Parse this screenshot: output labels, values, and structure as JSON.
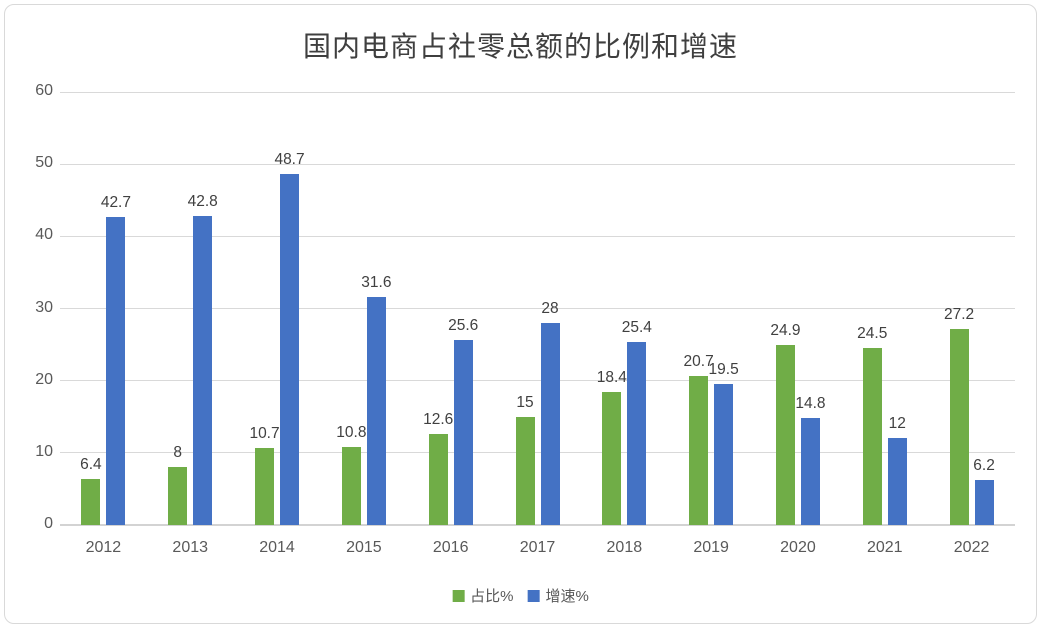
{
  "chart": {
    "title": "国内电商占社零总额的比例和增速"
  },
  "chart_data": {
    "type": "bar",
    "title": "国内电商占社零总额的比例和增速",
    "categories": [
      "2012",
      "2013",
      "2014",
      "2015",
      "2016",
      "2017",
      "2018",
      "2019",
      "2020",
      "2021",
      "2022"
    ],
    "series": [
      {
        "name": "占比%",
        "color": "#70AD47",
        "values": [
          6.4,
          8,
          10.7,
          10.8,
          12.6,
          15,
          18.4,
          20.7,
          24.9,
          24.5,
          27.2
        ]
      },
      {
        "name": "增速%",
        "color": "#4472C4",
        "values": [
          42.7,
          42.8,
          48.7,
          31.6,
          25.6,
          28,
          25.4,
          19.5,
          14.8,
          12,
          6.2
        ]
      }
    ],
    "xlabel": "",
    "ylabel": "",
    "ylim": [
      0,
      60
    ],
    "yticks": [
      0,
      10,
      20,
      30,
      40,
      50,
      60
    ],
    "grid": true,
    "legend_position": "bottom",
    "data_labels": true
  },
  "legend": {
    "items": [
      {
        "label": "占比%",
        "color": "#70AD47"
      },
      {
        "label": "增速%",
        "color": "#4472C4"
      }
    ]
  },
  "colors": {
    "series_proportion": "#70AD47",
    "series_growth": "#4472C4",
    "gridline": "#d9d9d9",
    "axis_text": "#595959",
    "data_label_text": "#404040",
    "title_text": "#3f3f3f",
    "frame_border": "#d9d9d9",
    "background": "#ffffff"
  }
}
